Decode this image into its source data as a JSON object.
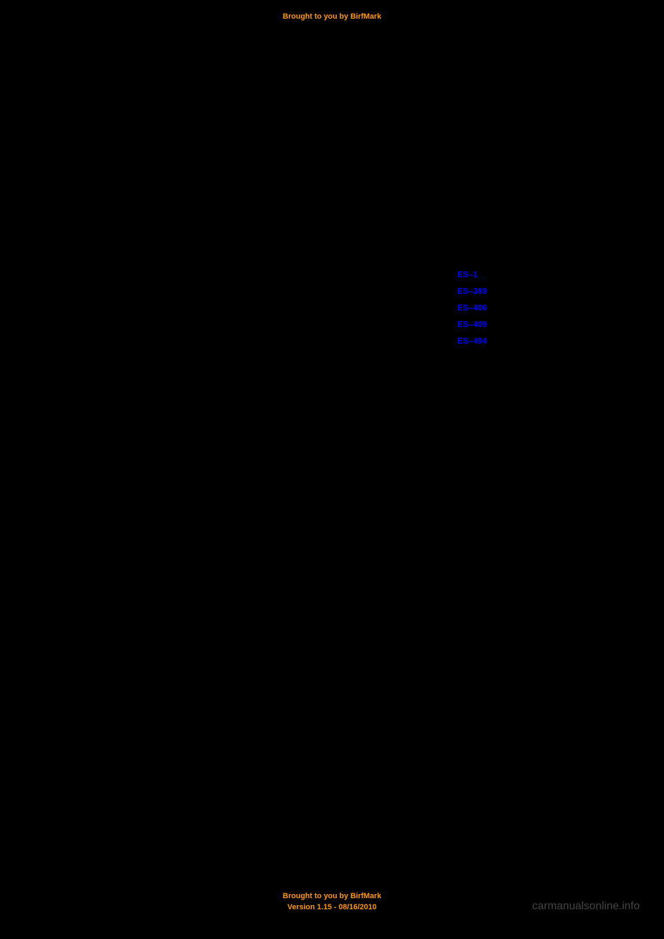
{
  "header": {
    "text": "Brought to you by BirfMark"
  },
  "footer": {
    "line1": "Brought to you by BirfMark",
    "line2": "Version 1.15 - 08/16/2010"
  },
  "watermark": {
    "text": "carmanualsonline.info"
  },
  "links": {
    "items": [
      {
        "label": "ES–1"
      },
      {
        "label": "ES–389"
      },
      {
        "label": "ES–406"
      },
      {
        "label": "ES–409"
      },
      {
        "label": "ES–494"
      }
    ]
  },
  "colors": {
    "background": "#000000",
    "header_text": "#ff9900",
    "footer_text": "#ff9900",
    "link_text": "#0000ff",
    "watermark_text": "#888888"
  },
  "typography": {
    "header_fontsize": 11,
    "footer_fontsize": 11,
    "link_fontsize": 12,
    "watermark_fontsize": 16
  }
}
